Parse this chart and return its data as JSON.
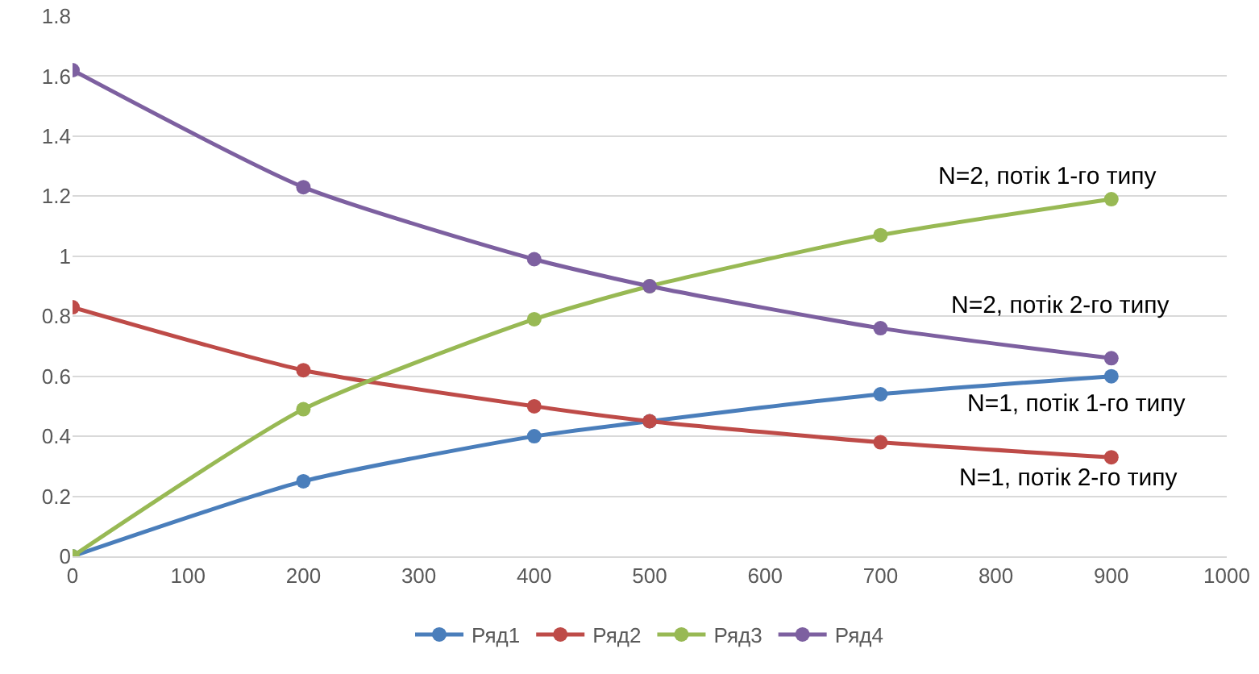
{
  "chart_data": {
    "type": "line",
    "x": [
      0,
      200,
      400,
      500,
      700,
      900
    ],
    "series": [
      {
        "name": "Ряд1",
        "color": "#4a7ebb",
        "values": [
          0,
          0.25,
          0.4,
          0.45,
          0.54,
          0.6
        ]
      },
      {
        "name": "Ряд2",
        "color": "#be4b48",
        "values": [
          0.83,
          0.62,
          0.5,
          0.45,
          0.38,
          0.33
        ]
      },
      {
        "name": "Ряд3",
        "color": "#98b954",
        "values": [
          0,
          0.49,
          0.79,
          0.9,
          1.07,
          1.19
        ]
      },
      {
        "name": "Ряд4",
        "color": "#7d60a0",
        "values": [
          1.62,
          1.23,
          0.99,
          0.9,
          0.76,
          0.66
        ]
      }
    ],
    "xlim": [
      0,
      1000
    ],
    "xticks": [
      0,
      100,
      200,
      300,
      400,
      500,
      600,
      700,
      800,
      900,
      1000
    ],
    "ylim": [
      0,
      1.8
    ],
    "yticks": [
      0,
      0.2,
      0.4,
      0.6,
      0.8,
      1,
      1.2,
      1.4,
      1.6,
      1.8
    ],
    "grid": "y",
    "legend": "bottom",
    "marker": "circle",
    "line_style": "solid",
    "annotations": [
      "N=2, потік 1-го типу",
      "N=2, потік 2-го типу",
      "N=1, потік 1-го типу",
      "N=1, потік 2-го типу"
    ]
  }
}
